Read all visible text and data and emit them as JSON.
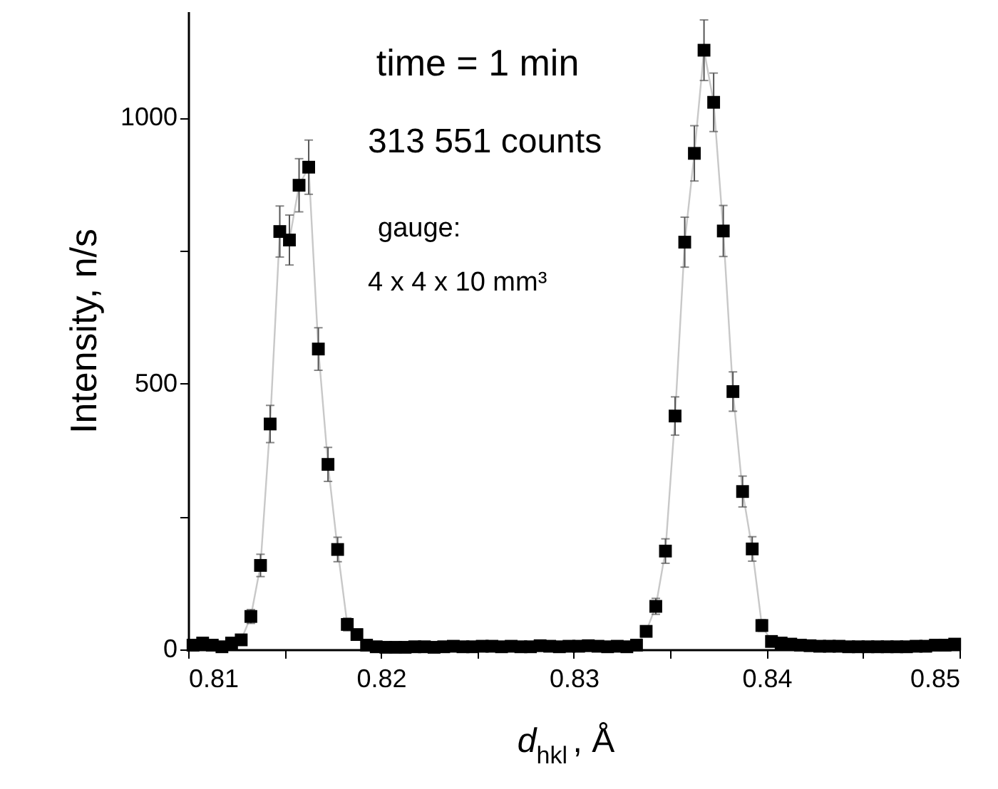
{
  "chart_data": {
    "type": "line",
    "xlabel": "d$_{hkl}$, Å",
    "ylabel": "Intensity, n/s",
    "annotations": [
      "time = 1 min",
      "313 551 counts",
      "gauge:",
      "4 x 4 x 10 mm³"
    ],
    "x": [
      0.81025,
      0.81075,
      0.81125,
      0.81175,
      0.81225,
      0.81275,
      0.81325,
      0.81375,
      0.81425,
      0.81475,
      0.81525,
      0.81575,
      0.81625,
      0.81675,
      0.81725,
      0.81775,
      0.81825,
      0.81875,
      0.81925,
      0.81975,
      0.82025,
      0.82075,
      0.82125,
      0.82175,
      0.82225,
      0.82275,
      0.82325,
      0.82375,
      0.82425,
      0.82475,
      0.82525,
      0.82575,
      0.82625,
      0.82675,
      0.82725,
      0.82775,
      0.82825,
      0.82875,
      0.82925,
      0.82975,
      0.83025,
      0.83075,
      0.83125,
      0.83175,
      0.83225,
      0.83275,
      0.83325,
      0.83375,
      0.83425,
      0.83475,
      0.83525,
      0.83575,
      0.83625,
      0.83675,
      0.83725,
      0.83775,
      0.83825,
      0.83875,
      0.83925,
      0.83975,
      0.84025,
      0.84075,
      0.84125,
      0.84175,
      0.84225,
      0.84275,
      0.84325,
      0.84375,
      0.84425,
      0.84475,
      0.84525,
      0.84575,
      0.84625,
      0.84675,
      0.84725,
      0.84775,
      0.84825,
      0.84875,
      0.84925,
      0.84975
    ],
    "series": [
      {
        "color": "#000000",
        "values": [
          8,
          12,
          8,
          5,
          12,
          18,
          62,
          158,
          424,
          786,
          770,
          873,
          907,
          565,
          348,
          188,
          47,
          28,
          8,
          5,
          4,
          4,
          4,
          5,
          5,
          4,
          5,
          6,
          5,
          5,
          6,
          6,
          5,
          6,
          5,
          5,
          7,
          6,
          5,
          6,
          6,
          7,
          6,
          5,
          6,
          5,
          8,
          34,
          81,
          185,
          439,
          766,
          933,
          1127,
          1029,
          787,
          485,
          297,
          189,
          45,
          15,
          12,
          10,
          8,
          7,
          6,
          6,
          6,
          5,
          5,
          5,
          5,
          5,
          5,
          5,
          6,
          6,
          8,
          8,
          10
        ],
        "errors": [
          null,
          null,
          null,
          null,
          null,
          null,
          13,
          21,
          35,
          48,
          47,
          50,
          51,
          40,
          32,
          23,
          12,
          9,
          null,
          null,
          null,
          null,
          null,
          null,
          null,
          null,
          null,
          null,
          null,
          null,
          null,
          null,
          null,
          null,
          null,
          null,
          null,
          null,
          null,
          null,
          null,
          null,
          null,
          null,
          null,
          null,
          null,
          10,
          15,
          23,
          36,
          47,
          52,
          57,
          55,
          48,
          37,
          29,
          23,
          11,
          null,
          null,
          null,
          null,
          null,
          null,
          null,
          null,
          null,
          null,
          null,
          null,
          null,
          null,
          null,
          null,
          null,
          null,
          null,
          null
        ]
      }
    ],
    "marker": "square",
    "line_style": "solid",
    "grid": false,
    "xlim": [
      0.81,
      0.85
    ],
    "xticks": [
      0.81,
      {
        "value": 0.815,
        "label": null
      },
      0.82,
      {
        "value": 0.825,
        "label": null
      },
      0.83,
      {
        "value": 0.835,
        "label": null
      },
      0.84,
      {
        "value": 0.845,
        "label": null
      },
      0.85
    ],
    "ylim": [
      0,
      1200
    ],
    "yticks": [
      0,
      {
        "value": 250,
        "label": null
      },
      500,
      {
        "value": 750,
        "label": null
      },
      1000
    ]
  }
}
